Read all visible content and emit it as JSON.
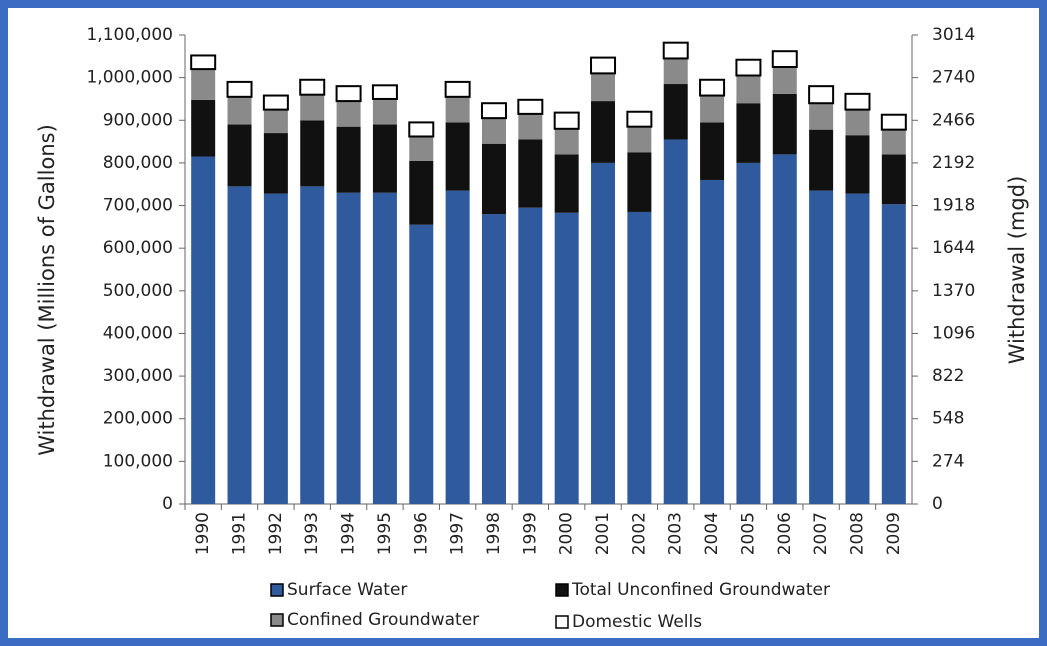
{
  "chart_data": {
    "type": "stacked_bar",
    "y_label": "Withdrawal (Millions of Gallons)",
    "y2_label": "Withdrawal (mgd)",
    "categories": [
      "1990",
      "1991",
      "1992",
      "1993",
      "1994",
      "1995",
      "1996",
      "1997",
      "1998",
      "1999",
      "2000",
      "2001",
      "2002",
      "2003",
      "2004",
      "2005",
      "2006",
      "2007",
      "2008",
      "2009"
    ],
    "series": [
      {
        "name": "Surface Water",
        "color": "#2f5a9e",
        "values": [
          815000,
          745000,
          728000,
          745000,
          730000,
          730000,
          655000,
          735000,
          680000,
          695000,
          683000,
          800000,
          685000,
          855000,
          760000,
          800000,
          820000,
          735000,
          728000,
          703000
        ]
      },
      {
        "name": "Total Unconfined Groundwater",
        "color": "#111111",
        "values": [
          133000,
          145000,
          142000,
          155000,
          155000,
          160000,
          150000,
          160000,
          165000,
          160000,
          137000,
          145000,
          140000,
          130000,
          135000,
          140000,
          142000,
          143000,
          137000,
          117000
        ]
      },
      {
        "name": "Confined Groundwater",
        "color": "#8a8a8a",
        "values": [
          72000,
          65000,
          55000,
          60000,
          60000,
          60000,
          57000,
          60000,
          60000,
          60000,
          60000,
          65000,
          60000,
          60000,
          63000,
          65000,
          63000,
          62000,
          60000,
          58000
        ]
      },
      {
        "name": "Domestic Wells",
        "color": "#ffffff",
        "values": [
          32000,
          35000,
          33000,
          35000,
          35000,
          32000,
          33000,
          35000,
          35000,
          33000,
          38000,
          37000,
          35000,
          37000,
          37000,
          37000,
          37000,
          40000,
          37000,
          35000
        ]
      }
    ],
    "ylim": [
      0,
      1100000
    ],
    "yticks": [
      0,
      {
        "value": 100000,
        "label": "100,000"
      },
      {
        "value": 200000,
        "label": "200,000"
      },
      {
        "value": 300000,
        "label": "300,000"
      },
      {
        "value": 400000,
        "label": "400,000"
      },
      {
        "value": 500000,
        "label": "500,000"
      },
      {
        "value": 600000,
        "label": "600,000"
      },
      {
        "value": 700000,
        "label": "700,000"
      },
      {
        "value": 800000,
        "label": "800,000"
      },
      {
        "value": 900000,
        "label": "900,000"
      },
      {
        "value": 1000000,
        "label": "1,000,000"
      },
      {
        "value": 1100000,
        "label": "1,100,000"
      }
    ],
    "y2lim": [
      0,
      3014
    ],
    "y2ticks": [
      0,
      274,
      548,
      822,
      1096,
      1370,
      1644,
      1918,
      2192,
      2466,
      2740,
      3014
    ],
    "grid": false
  }
}
